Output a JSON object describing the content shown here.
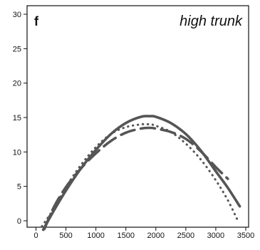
{
  "chart_data": {
    "type": "line",
    "panel_label": "f",
    "title": "high trunk",
    "xlabel": "",
    "ylabel": "",
    "xlim": [
      -50,
      3500
    ],
    "ylim": [
      -1,
      30
    ],
    "x_ticks": [
      0,
      500,
      1000,
      1500,
      2000,
      2500,
      3000,
      3500
    ],
    "y_ticks": [
      0,
      5,
      10,
      15,
      20,
      25,
      30
    ],
    "grid": false,
    "legend": "none",
    "series": [
      {
        "style": "solid",
        "x": [
          120,
          300,
          500,
          750,
          1000,
          1250,
          1500,
          1750,
          1900,
          2000,
          2250,
          2500,
          2750,
          3000,
          3200,
          3400
        ],
        "y": [
          -1.3,
          1.5,
          4.4,
          7.6,
          10.3,
          12.6,
          14.2,
          15.1,
          15.2,
          15.1,
          14.2,
          12.6,
          10.2,
          7.2,
          4.8,
          2.1
        ]
      },
      {
        "style": "dashed",
        "x": [
          140,
          300,
          500,
          750,
          1000,
          1250,
          1500,
          1750,
          1900,
          2000,
          2250,
          2500,
          2750,
          3000,
          3200
        ],
        "y": [
          -1.2,
          2.0,
          4.9,
          7.6,
          9.8,
          11.6,
          12.8,
          13.4,
          13.5,
          13.4,
          12.9,
          11.9,
          10.1,
          7.8,
          6.1
        ]
      },
      {
        "style": "dotted",
        "x": [
          100,
          300,
          500,
          750,
          1000,
          1250,
          1500,
          1750,
          1900,
          2000,
          2250,
          2500,
          2750,
          3000,
          3200,
          3380
        ],
        "y": [
          -0.8,
          1.8,
          4.9,
          8.1,
          10.7,
          12.6,
          13.6,
          14.0,
          14.0,
          13.8,
          12.9,
          11.2,
          8.9,
          5.9,
          3.0,
          -0.2
        ]
      }
    ]
  }
}
